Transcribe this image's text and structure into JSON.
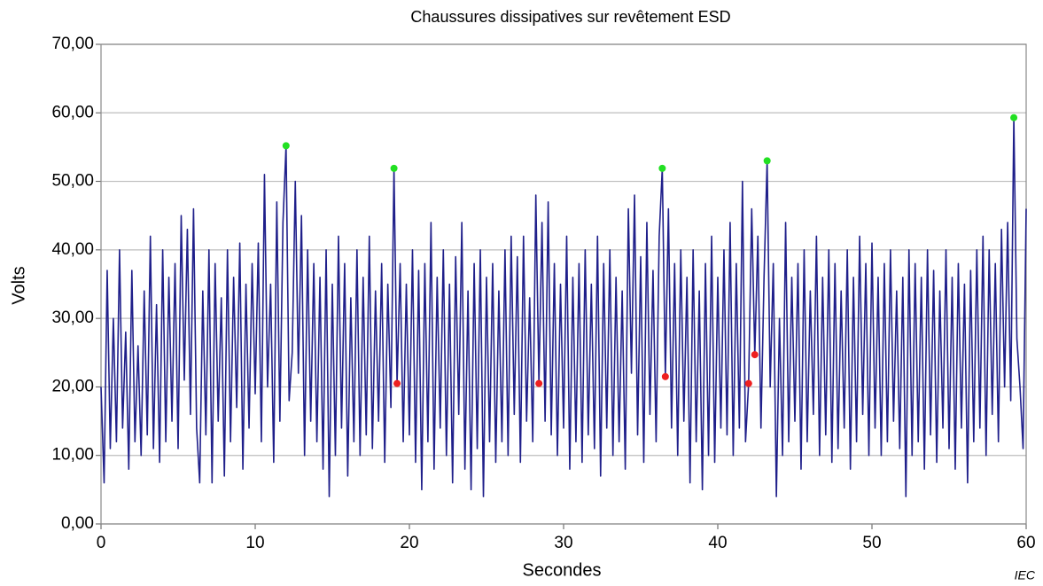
{
  "chart_data": {
    "type": "line",
    "title": "Chaussures dissipatives sur revêtement ESD",
    "x_label": "Secondes",
    "y_label": "Volts",
    "annotation": "IEC",
    "xlim": [
      0,
      60
    ],
    "xticks": [
      0,
      10,
      20,
      30,
      40,
      50,
      60
    ],
    "ylim": [
      0,
      70
    ],
    "yticks": [
      {
        "value": 0,
        "label": "0,00"
      },
      {
        "value": 10,
        "label": "10,00"
      },
      {
        "value": 20,
        "label": "20,00"
      },
      {
        "value": 30,
        "label": "30,00"
      },
      {
        "value": 40,
        "label": "40,00"
      },
      {
        "value": 50,
        "label": "50,00"
      },
      {
        "value": 60,
        "label": "60,00"
      },
      {
        "value": 70,
        "label": "70,00"
      }
    ],
    "grid": true,
    "series": [
      {
        "color": "#1f1f8a",
        "style": "line",
        "x": [
          0,
          0.2,
          0.4,
          0.6,
          0.8,
          1,
          1.2,
          1.4,
          1.6,
          1.8,
          2,
          2.2,
          2.4,
          2.6,
          2.8,
          3,
          3.2,
          3.4,
          3.6,
          3.8,
          4,
          4.2,
          4.4,
          4.6,
          4.8,
          5,
          5.2,
          5.4,
          5.6,
          5.8,
          6,
          6.2,
          6.4,
          6.6,
          6.8,
          7,
          7.2,
          7.4,
          7.6,
          7.8,
          8,
          8.2,
          8.4,
          8.6,
          8.8,
          9,
          9.2,
          9.4,
          9.6,
          9.8,
          10,
          10.2,
          10.4,
          10.6,
          10.8,
          11,
          11.2,
          11.4,
          11.6,
          11.8,
          12,
          12.2,
          12.4,
          12.6,
          12.8,
          13,
          13.2,
          13.4,
          13.6,
          13.8,
          14,
          14.2,
          14.4,
          14.6,
          14.8,
          15,
          15.2,
          15.4,
          15.6,
          15.8,
          16,
          16.2,
          16.4,
          16.6,
          16.8,
          17,
          17.2,
          17.4,
          17.6,
          17.8,
          18,
          18.2,
          18.4,
          18.6,
          18.8,
          19,
          19.2,
          19.4,
          19.6,
          19.8,
          20,
          20.2,
          20.4,
          20.6,
          20.8,
          21,
          21.2,
          21.4,
          21.6,
          21.8,
          22,
          22.2,
          22.4,
          22.6,
          22.8,
          23,
          23.2,
          23.4,
          23.6,
          23.8,
          24,
          24.2,
          24.4,
          24.6,
          24.8,
          25,
          25.2,
          25.4,
          25.6,
          25.8,
          26,
          26.2,
          26.4,
          26.6,
          26.8,
          27,
          27.2,
          27.4,
          27.6,
          27.8,
          28,
          28.2,
          28.4,
          28.6,
          28.8,
          29,
          29.2,
          29.4,
          29.6,
          29.8,
          30,
          30.2,
          30.4,
          30.6,
          30.8,
          31,
          31.2,
          31.4,
          31.6,
          31.8,
          32,
          32.2,
          32.4,
          32.6,
          32.8,
          33,
          33.2,
          33.4,
          33.6,
          33.8,
          34,
          34.2,
          34.4,
          34.6,
          34.8,
          35,
          35.2,
          35.4,
          35.6,
          35.8,
          36,
          36.2,
          36.4,
          36.6,
          36.8,
          37,
          37.2,
          37.4,
          37.6,
          37.8,
          38,
          38.2,
          38.4,
          38.6,
          38.8,
          39,
          39.2,
          39.4,
          39.6,
          39.8,
          40,
          40.2,
          40.4,
          40.6,
          40.8,
          41,
          41.2,
          41.4,
          41.6,
          41.8,
          42,
          42.2,
          42.4,
          42.6,
          42.8,
          43,
          43.2,
          43.4,
          43.6,
          43.8,
          44,
          44.2,
          44.4,
          44.6,
          44.8,
          45,
          45.2,
          45.4,
          45.6,
          45.8,
          46,
          46.2,
          46.4,
          46.6,
          46.8,
          47,
          47.2,
          47.4,
          47.6,
          47.8,
          48,
          48.2,
          48.4,
          48.6,
          48.8,
          49,
          49.2,
          49.4,
          49.6,
          49.8,
          50,
          50.2,
          50.4,
          50.6,
          50.8,
          51,
          51.2,
          51.4,
          51.6,
          51.8,
          52,
          52.2,
          52.4,
          52.6,
          52.8,
          53,
          53.2,
          53.4,
          53.6,
          53.8,
          54,
          54.2,
          54.4,
          54.6,
          54.8,
          55,
          55.2,
          55.4,
          55.6,
          55.8,
          56,
          56.2,
          56.4,
          56.6,
          56.8,
          57,
          57.2,
          57.4,
          57.6,
          57.8,
          58,
          58.2,
          58.4,
          58.6,
          58.8,
          59,
          59.2,
          59.4,
          59.6,
          59.8,
          60
        ],
        "values": [
          20,
          6,
          37,
          11,
          30,
          12,
          40,
          14,
          28,
          8,
          37,
          12,
          26,
          10,
          34,
          13,
          42,
          11,
          32,
          9,
          40,
          12,
          36,
          15,
          38,
          11,
          45,
          21,
          43,
          16,
          46,
          14,
          6,
          34,
          13,
          40,
          6,
          38,
          15,
          33,
          7,
          40,
          12,
          36,
          17,
          41,
          8,
          35,
          14,
          38,
          19,
          41,
          12,
          51,
          20,
          35,
          9,
          47,
          15,
          44,
          55.2,
          18,
          25,
          50,
          22,
          45,
          10,
          40,
          15,
          38,
          12,
          36,
          8,
          40,
          4,
          35,
          10,
          42,
          14,
          38,
          7,
          33,
          12,
          40,
          10,
          36,
          13,
          42,
          11,
          34,
          15,
          38,
          9,
          35,
          17,
          51.9,
          20.5,
          38,
          12,
          35,
          13,
          40,
          9,
          37,
          5,
          38,
          12,
          44,
          8,
          36,
          14,
          40,
          10,
          35,
          6,
          39,
          16,
          44,
          8,
          34,
          5,
          38,
          11,
          40,
          4,
          36,
          12,
          38,
          9,
          34,
          12,
          40,
          10,
          42,
          16,
          39,
          9,
          42,
          15,
          33,
          12,
          48,
          20.5,
          44,
          15,
          47,
          13,
          38,
          10,
          35,
          14,
          42,
          8,
          36,
          12,
          38,
          9,
          40,
          13,
          35,
          11,
          42,
          7,
          38,
          14,
          40,
          10,
          36,
          12,
          34,
          8,
          46,
          22,
          48,
          13,
          39,
          9,
          44,
          16,
          37,
          12,
          42,
          51.9,
          21.5,
          46,
          14,
          38,
          10,
          40,
          15,
          36,
          6,
          40,
          12,
          34,
          5,
          38,
          10,
          42,
          9,
          36,
          14,
          40,
          13,
          44,
          10,
          38,
          14,
          50,
          12,
          20.5,
          46,
          24.7,
          42,
          14,
          36,
          53,
          20,
          38,
          4,
          30,
          10,
          44,
          12,
          36,
          15,
          38,
          8,
          40,
          12,
          34,
          16,
          42,
          10,
          36,
          13,
          40,
          9,
          38,
          11,
          34,
          14,
          40,
          8,
          36,
          12,
          42,
          16,
          38,
          10,
          41,
          14,
          36,
          10,
          38,
          12,
          40,
          15,
          34,
          11,
          36,
          4,
          40,
          10,
          38,
          12,
          36,
          8,
          40,
          13,
          37,
          9,
          34,
          14,
          40,
          11,
          36,
          8,
          38,
          14,
          35,
          6,
          37,
          12,
          40,
          14,
          42,
          10,
          40,
          16,
          38,
          12,
          43,
          20,
          44,
          18,
          59.3,
          27,
          20,
          11,
          46
        ]
      },
      {
        "color": "#22e022",
        "style": "points",
        "x": [
          12,
          19,
          36.4,
          43.2,
          59.2
        ],
        "values": [
          55.2,
          51.9,
          51.9,
          53,
          59.3
        ]
      },
      {
        "color": "#ee2020",
        "style": "points",
        "x": [
          19.2,
          28.4,
          36.6,
          42,
          42.4
        ],
        "values": [
          20.5,
          20.5,
          21.5,
          20.5,
          24.7
        ]
      }
    ]
  }
}
